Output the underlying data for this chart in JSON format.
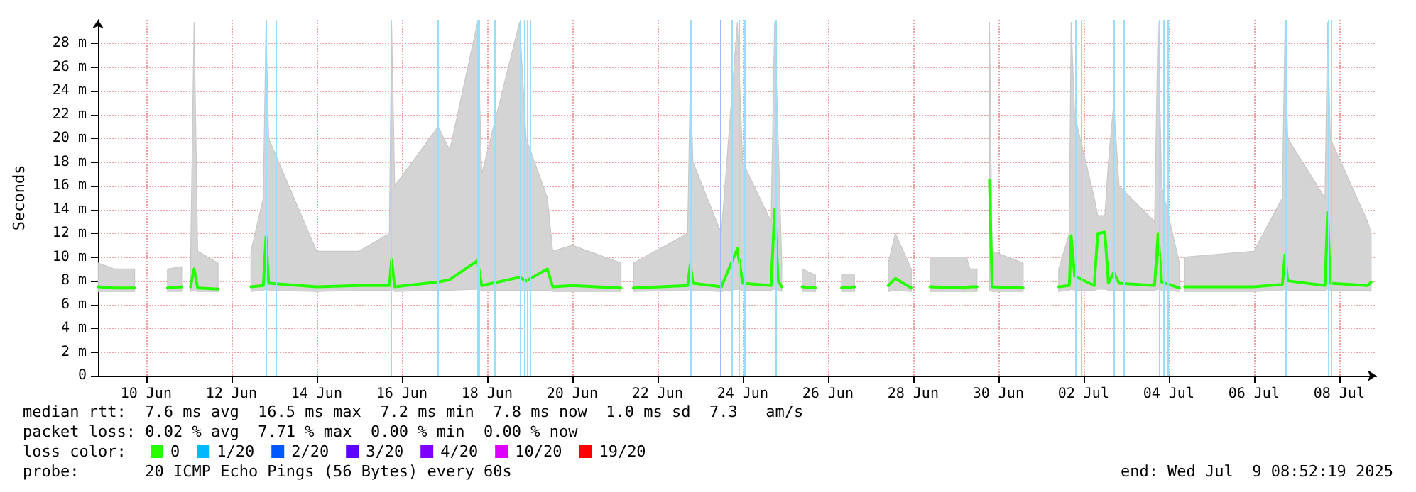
{
  "chart_data": {
    "type": "line",
    "ylabel": "Seconds",
    "legend_title": "loss color:",
    "legend": "bottom left",
    "grid": true,
    "marker": "none",
    "line_style": "solid",
    "xlim": [
      "2025-06-09T08:52",
      "2025-07-09T08:52"
    ],
    "xticks": [
      {
        "value": "2025-06-10T12:00",
        "label": "10 Jun"
      },
      {
        "value": "2025-06-12T12:00",
        "label": "12 Jun"
      },
      {
        "value": "2025-06-14T12:00",
        "label": "14 Jun"
      },
      {
        "value": "2025-06-16T12:00",
        "label": "16 Jun"
      },
      {
        "value": "2025-06-18T12:00",
        "label": "18 Jun"
      },
      {
        "value": "2025-06-20T12:00",
        "label": "20 Jun"
      },
      {
        "value": "2025-06-22T12:00",
        "label": "22 Jun"
      },
      {
        "value": "2025-06-24T12:00",
        "label": "24 Jun"
      },
      {
        "value": "2025-06-26T12:00",
        "label": "26 Jun"
      },
      {
        "value": "2025-06-28T12:00",
        "label": "28 Jun"
      },
      {
        "value": "2025-06-30T12:00",
        "label": "30 Jun"
      },
      {
        "value": "2025-07-02T12:00",
        "label": "02 Jul"
      },
      {
        "value": "2025-07-04T12:00",
        "label": "04 Jul"
      },
      {
        "value": "2025-07-06T12:00",
        "label": "06 Jul"
      },
      {
        "value": "2025-07-08T12:00",
        "label": "08 Jul"
      }
    ],
    "ylim": [
      0,
      30
    ],
    "yticks": [
      0,
      {
        "value": 2,
        "label": "2 m"
      },
      {
        "value": 4,
        "label": "4 m"
      },
      {
        "value": 6,
        "label": "6 m"
      },
      {
        "value": 8,
        "label": "8 m"
      },
      {
        "value": 10,
        "label": "10 m"
      },
      {
        "value": 12,
        "label": "12 m"
      },
      {
        "value": 14,
        "label": "14 m"
      },
      {
        "value": 16,
        "label": "16 m"
      },
      {
        "value": 18,
        "label": "18 m"
      },
      {
        "value": 20,
        "label": "20 m"
      },
      {
        "value": 22,
        "label": "22 m"
      },
      {
        "value": 24,
        "label": "24 m"
      },
      {
        "value": 26,
        "label": "26 m"
      },
      {
        "value": 28,
        "label": "28 m"
      }
    ],
    "series": [
      {
        "name": "0",
        "color": "#26ff00",
        "x": [
          "2025-06-09T09:00",
          "2025-06-09T18:00",
          "2025-06-10T05:30",
          "2025-06-10T12:00",
          "2025-06-11T00:00",
          "2025-06-11T08:00",
          "2025-06-11T10:00",
          "2025-06-11T13:00",
          "2025-06-11T15:00",
          "2025-06-11T17:00",
          "2025-06-12T04:30",
          "2025-06-12T12:00",
          "2025-06-12T23:00",
          "2025-06-13T06:00",
          "2025-06-13T07:30",
          "2025-06-13T09:00",
          "2025-06-14T12:00",
          "2025-06-15T12:00",
          "2025-06-16T05:00",
          "2025-06-16T06:15",
          "2025-06-16T08:00",
          "2025-06-17T08:30",
          "2025-06-17T15:00",
          "2025-06-18T06:40",
          "2025-06-18T09:00",
          "2025-06-19T06:20",
          "2025-06-19T10:00",
          "2025-06-19T22:00",
          "2025-06-20T01:00",
          "2025-06-20T12:00",
          "2025-06-21T15:30",
          "2025-06-21T19:00",
          "2025-06-21T22:30",
          "2025-06-23T05:00",
          "2025-06-23T06:30",
          "2025-06-23T08:00",
          "2025-06-24T00:00",
          "2025-06-24T09:00",
          "2025-06-24T12:00",
          "2025-06-25T04:00",
          "2025-06-25T06:00",
          "2025-06-25T08:00",
          "2025-06-25T10:00",
          "2025-06-25T15:00",
          "2025-06-25T21:30",
          "2025-06-26T05:00",
          "2025-06-26T12:00",
          "2025-06-26T19:40",
          "2025-06-27T03:00",
          "2025-06-27T12:00",
          "2025-06-27T22:00",
          "2025-06-28T02:00",
          "2025-06-28T11:00",
          "2025-06-28T16:00",
          "2025-06-28T21:30",
          "2025-06-29T18:00",
          "2025-06-29T20:00",
          "2025-06-29T21:30",
          "2025-06-30T00:00",
          "2025-06-30T04:00",
          "2025-06-30T07:00",
          "2025-06-30T08:30",
          "2025-07-01T02:00",
          "2025-07-01T12:00",
          "2025-07-01T22:00",
          "2025-07-02T04:00",
          "2025-07-02T05:00",
          "2025-07-02T07:00",
          "2025-07-02T18:00",
          "2025-07-02T20:00",
          "2025-07-03T00:00",
          "2025-07-03T02:00",
          "2025-07-03T05:00",
          "2025-07-03T08:00",
          "2025-07-04T04:00",
          "2025-07-04T06:00",
          "2025-07-04T08:00",
          "2025-07-04T18:00",
          "2025-07-04T19:30",
          "2025-07-04T21:00",
          "2025-07-06T12:00",
          "2025-07-07T04:00",
          "2025-07-07T05:30",
          "2025-07-07T07:00",
          "2025-07-08T04:00",
          "2025-07-08T05:30",
          "2025-07-08T07:00",
          "2025-07-09T04:00",
          "2025-07-09T06:00"
        ],
        "values": [
          7.5,
          7.4,
          7.4,
          null,
          7.4,
          7.5,
          null,
          7.5,
          9.0,
          7.4,
          7.3,
          null,
          7.5,
          7.6,
          11.7,
          7.8,
          7.5,
          7.6,
          7.6,
          9.8,
          7.5,
          7.9,
          8.1,
          9.7,
          7.6,
          8.3,
          8.0,
          9.0,
          7.5,
          7.6,
          7.4,
          null,
          7.4,
          7.6,
          9.4,
          7.8,
          7.5,
          10.7,
          7.8,
          7.6,
          14.0,
          8.0,
          7.5,
          null,
          7.5,
          7.4,
          null,
          7.4,
          7.5,
          null,
          7.6,
          8.2,
          7.4,
          null,
          7.5,
          7.4,
          7.5,
          7.5,
          7.5,
          null,
          16.5,
          7.5,
          7.4,
          null,
          7.5,
          7.6,
          11.8,
          8.4,
          7.6,
          12.0,
          12.1,
          7.8,
          8.7,
          7.8,
          7.6,
          12.0,
          7.9,
          7.4,
          null,
          7.5,
          7.5,
          7.7,
          10.2,
          8.0,
          7.6,
          13.8,
          7.8,
          7.6,
          7.9
        ],
        "lower": [
          7.1,
          7.1,
          7.1,
          null,
          7.1,
          7.1,
          null,
          7.1,
          7.2,
          7.1,
          7.1,
          null,
          7.1,
          7.2,
          7.3,
          7.2,
          7.1,
          7.2,
          7.2,
          7.3,
          7.1,
          7.2,
          7.2,
          7.3,
          7.2,
          7.2,
          7.2,
          7.2,
          7.1,
          7.1,
          7.1,
          null,
          7.1,
          7.2,
          7.3,
          7.2,
          7.1,
          7.3,
          7.2,
          7.2,
          7.3,
          7.2,
          7.1,
          null,
          7.1,
          7.1,
          null,
          7.1,
          7.1,
          null,
          7.1,
          7.2,
          7.1,
          null,
          7.1,
          7.1,
          7.1,
          7.1,
          7.1,
          null,
          7.2,
          7.1,
          7.1,
          null,
          7.1,
          7.2,
          7.3,
          7.2,
          7.2,
          7.3,
          7.3,
          7.2,
          7.2,
          7.2,
          7.2,
          7.3,
          7.2,
          7.1,
          null,
          7.1,
          7.1,
          7.2,
          7.3,
          7.2,
          7.2,
          7.3,
          7.2,
          7.2,
          7.2
        ],
        "upper": [
          9.5,
          9.0,
          9.0,
          null,
          9.0,
          9.2,
          null,
          9.5,
          29.8,
          10.5,
          9.5,
          null,
          10.5,
          15,
          29.8,
          20,
          10.5,
          10.5,
          12,
          29.8,
          16,
          21,
          19,
          29.8,
          17,
          29.8,
          20,
          15,
          10.5,
          11,
          9.5,
          null,
          9.5,
          12,
          25,
          18,
          12,
          29.8,
          18,
          13,
          29.8,
          20,
          9.5,
          null,
          9.0,
          8.5,
          null,
          8.5,
          8.5,
          null,
          9.5,
          12,
          9.0,
          null,
          10,
          10,
          9.0,
          9.0,
          9.0,
          null,
          29.8,
          10.5,
          9.5,
          null,
          9.0,
          12,
          29.8,
          22,
          15,
          13.5,
          13.5,
          18,
          23,
          16,
          13,
          29.8,
          16,
          9.5,
          null,
          10,
          10.5,
          15,
          29.8,
          20,
          15,
          29.8,
          20,
          13,
          12
        ]
      },
      {
        "name": "1/20",
        "color": "#00b8ff"
      },
      {
        "name": "2/20",
        "color": "#0059ff"
      },
      {
        "name": "3/20",
        "color": "#5e00ff"
      },
      {
        "name": "4/20",
        "color": "#7e00ff"
      },
      {
        "name": "10/20",
        "color": "#dd00ff"
      },
      {
        "name": "19/20",
        "color": "#ff0000"
      }
    ],
    "ref_lines": [
      {
        "axis": "x",
        "value": "2025-06-13T07:30",
        "color": "#99ddff"
      },
      {
        "axis": "x",
        "value": "2025-06-13T12:45",
        "color": "#99ddff"
      },
      {
        "axis": "x",
        "value": "2025-06-16T06:15",
        "color": "#99ddff"
      },
      {
        "axis": "x",
        "value": "2025-06-17T08:30",
        "color": "#99ddff"
      },
      {
        "axis": "x",
        "value": "2025-06-18T06:40",
        "color": "#99ddff"
      },
      {
        "axis": "x",
        "value": "2025-06-18T07:40",
        "color": "#99ddff"
      },
      {
        "axis": "x",
        "value": "2025-06-18T16:00",
        "color": "#99ddff"
      },
      {
        "axis": "x",
        "value": "2025-06-19T06:20",
        "color": "#99ddff"
      },
      {
        "axis": "x",
        "value": "2025-06-19T09:00",
        "color": "#99ddff"
      },
      {
        "axis": "x",
        "value": "2025-06-19T10:40",
        "color": "#99ddff"
      },
      {
        "axis": "x",
        "value": "2025-06-19T12:10",
        "color": "#99ddff"
      },
      {
        "axis": "x",
        "value": "2025-06-23T07:00",
        "color": "#99ddff"
      },
      {
        "axis": "x",
        "value": "2025-06-23T23:10",
        "color": "#99bbff"
      },
      {
        "axis": "x",
        "value": "2025-06-24T06:00",
        "color": "#99ddff"
      },
      {
        "axis": "x",
        "value": "2025-06-24T09:30",
        "color": "#99ddff"
      },
      {
        "axis": "x",
        "value": "2025-06-24T12:40",
        "color": "#99ddff"
      },
      {
        "axis": "x",
        "value": "2025-06-25T06:50",
        "color": "#99ddff"
      },
      {
        "axis": "x",
        "value": "2025-07-02T07:15",
        "color": "#99ddff"
      },
      {
        "axis": "x",
        "value": "2025-07-02T10:40",
        "color": "#99ddff"
      },
      {
        "axis": "x",
        "value": "2025-07-03T05:15",
        "color": "#99ddff"
      },
      {
        "axis": "x",
        "value": "2025-07-03T10:40",
        "color": "#99ddff"
      },
      {
        "axis": "x",
        "value": "2025-07-04T06:20",
        "color": "#99ddff"
      },
      {
        "axis": "x",
        "value": "2025-07-04T09:10",
        "color": "#99ddff"
      },
      {
        "axis": "x",
        "value": "2025-07-04T11:20",
        "color": "#99ddff"
      },
      {
        "axis": "x",
        "value": "2025-07-07T05:35",
        "color": "#99ddff"
      },
      {
        "axis": "x",
        "value": "2025-07-08T05:45",
        "color": "#99ddff"
      },
      {
        "axis": "x",
        "value": "2025-07-08T07:25",
        "color": "#99ddff"
      }
    ],
    "annotations": [
      "median rtt:  7.6 ms avg  16.5 ms max  7.2 ms min  7.8 ms now  1.0 ms sd  7.3   am/s",
      "packet loss: 0.02 % avg  7.71 % max  0.00 % min  0.00 % now",
      "probe:       20 ICMP Echo Pings (56 Bytes) every 60s",
      "end: Wed Jul  9 08:52:19 2025"
    ]
  }
}
